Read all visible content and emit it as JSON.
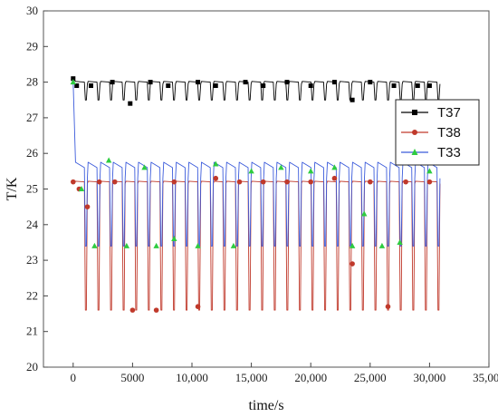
{
  "chart_data": {
    "type": "line",
    "xlabel": "time/s",
    "ylabel": "T/K",
    "xlim": [
      -2500,
      35000
    ],
    "ylim": [
      20,
      30
    ],
    "x_ticks": [
      0,
      5000,
      10000,
      15000,
      20000,
      25000,
      30000,
      35000
    ],
    "x_tick_labels": [
      "0",
      "5000",
      "10,000",
      "15,000",
      "20,000",
      "25,000",
      "30,000",
      "35,000"
    ],
    "y_ticks": [
      20,
      21,
      22,
      23,
      24,
      25,
      26,
      27,
      28,
      29,
      30
    ],
    "y_tick_labels": [
      "20",
      "21",
      "22",
      "23",
      "24",
      "25",
      "26",
      "27",
      "28",
      "29",
      "30"
    ],
    "grid": false,
    "legend_position": "right",
    "cycle_period": 1060,
    "series": [
      {
        "name": "T37",
        "color": "#000000",
        "marker": "square",
        "baseline": 28.0,
        "dip_to": 27.5,
        "points": [
          [
            0,
            28.1
          ],
          [
            300,
            27.9
          ],
          [
            1500,
            27.9
          ],
          [
            3300,
            28.0
          ],
          [
            4800,
            27.4
          ],
          [
            6500,
            28.0
          ],
          [
            8000,
            27.9
          ],
          [
            10500,
            28.0
          ],
          [
            12000,
            27.9
          ],
          [
            14500,
            28.0
          ],
          [
            16000,
            27.9
          ],
          [
            18000,
            28.0
          ],
          [
            20000,
            27.9
          ],
          [
            22000,
            28.0
          ],
          [
            23500,
            27.5
          ],
          [
            25000,
            28.0
          ],
          [
            27000,
            27.9
          ],
          [
            29000,
            27.9
          ],
          [
            30000,
            27.9
          ]
        ]
      },
      {
        "name": "T38",
        "color": "#c0392b",
        "marker": "circle",
        "baseline": 25.2,
        "dip_to": 21.6,
        "points": [
          [
            0,
            25.2
          ],
          [
            500,
            25.0
          ],
          [
            1200,
            24.5
          ],
          [
            2200,
            25.2
          ],
          [
            3500,
            25.2
          ],
          [
            5000,
            21.6
          ],
          [
            7000,
            21.6
          ],
          [
            8500,
            25.2
          ],
          [
            10500,
            21.7
          ],
          [
            12000,
            25.3
          ],
          [
            14000,
            25.2
          ],
          [
            16000,
            25.2
          ],
          [
            18000,
            25.2
          ],
          [
            20000,
            25.2
          ],
          [
            22000,
            25.3
          ],
          [
            23500,
            22.9
          ],
          [
            25000,
            25.2
          ],
          [
            26500,
            21.7
          ],
          [
            28000,
            25.2
          ],
          [
            30000,
            25.2
          ]
        ]
      },
      {
        "name": "T33",
        "color": "#3b5bdb",
        "marker_color": "#2ecc40",
        "marker": "triangle",
        "baseline": 25.6,
        "dip_to": 23.4,
        "points": [
          [
            0,
            28.0
          ],
          [
            700,
            25.0
          ],
          [
            1800,
            23.4
          ],
          [
            3000,
            25.8
          ],
          [
            4500,
            23.4
          ],
          [
            6000,
            25.6
          ],
          [
            7000,
            23.4
          ],
          [
            8500,
            23.6
          ],
          [
            10500,
            23.4
          ],
          [
            12000,
            25.7
          ],
          [
            13500,
            23.4
          ],
          [
            15000,
            25.5
          ],
          [
            17500,
            25.6
          ],
          [
            20000,
            25.5
          ],
          [
            22000,
            25.6
          ],
          [
            23500,
            23.4
          ],
          [
            24500,
            24.3
          ],
          [
            26000,
            23.4
          ],
          [
            27500,
            23.5
          ],
          [
            30000,
            25.5
          ]
        ]
      }
    ]
  }
}
